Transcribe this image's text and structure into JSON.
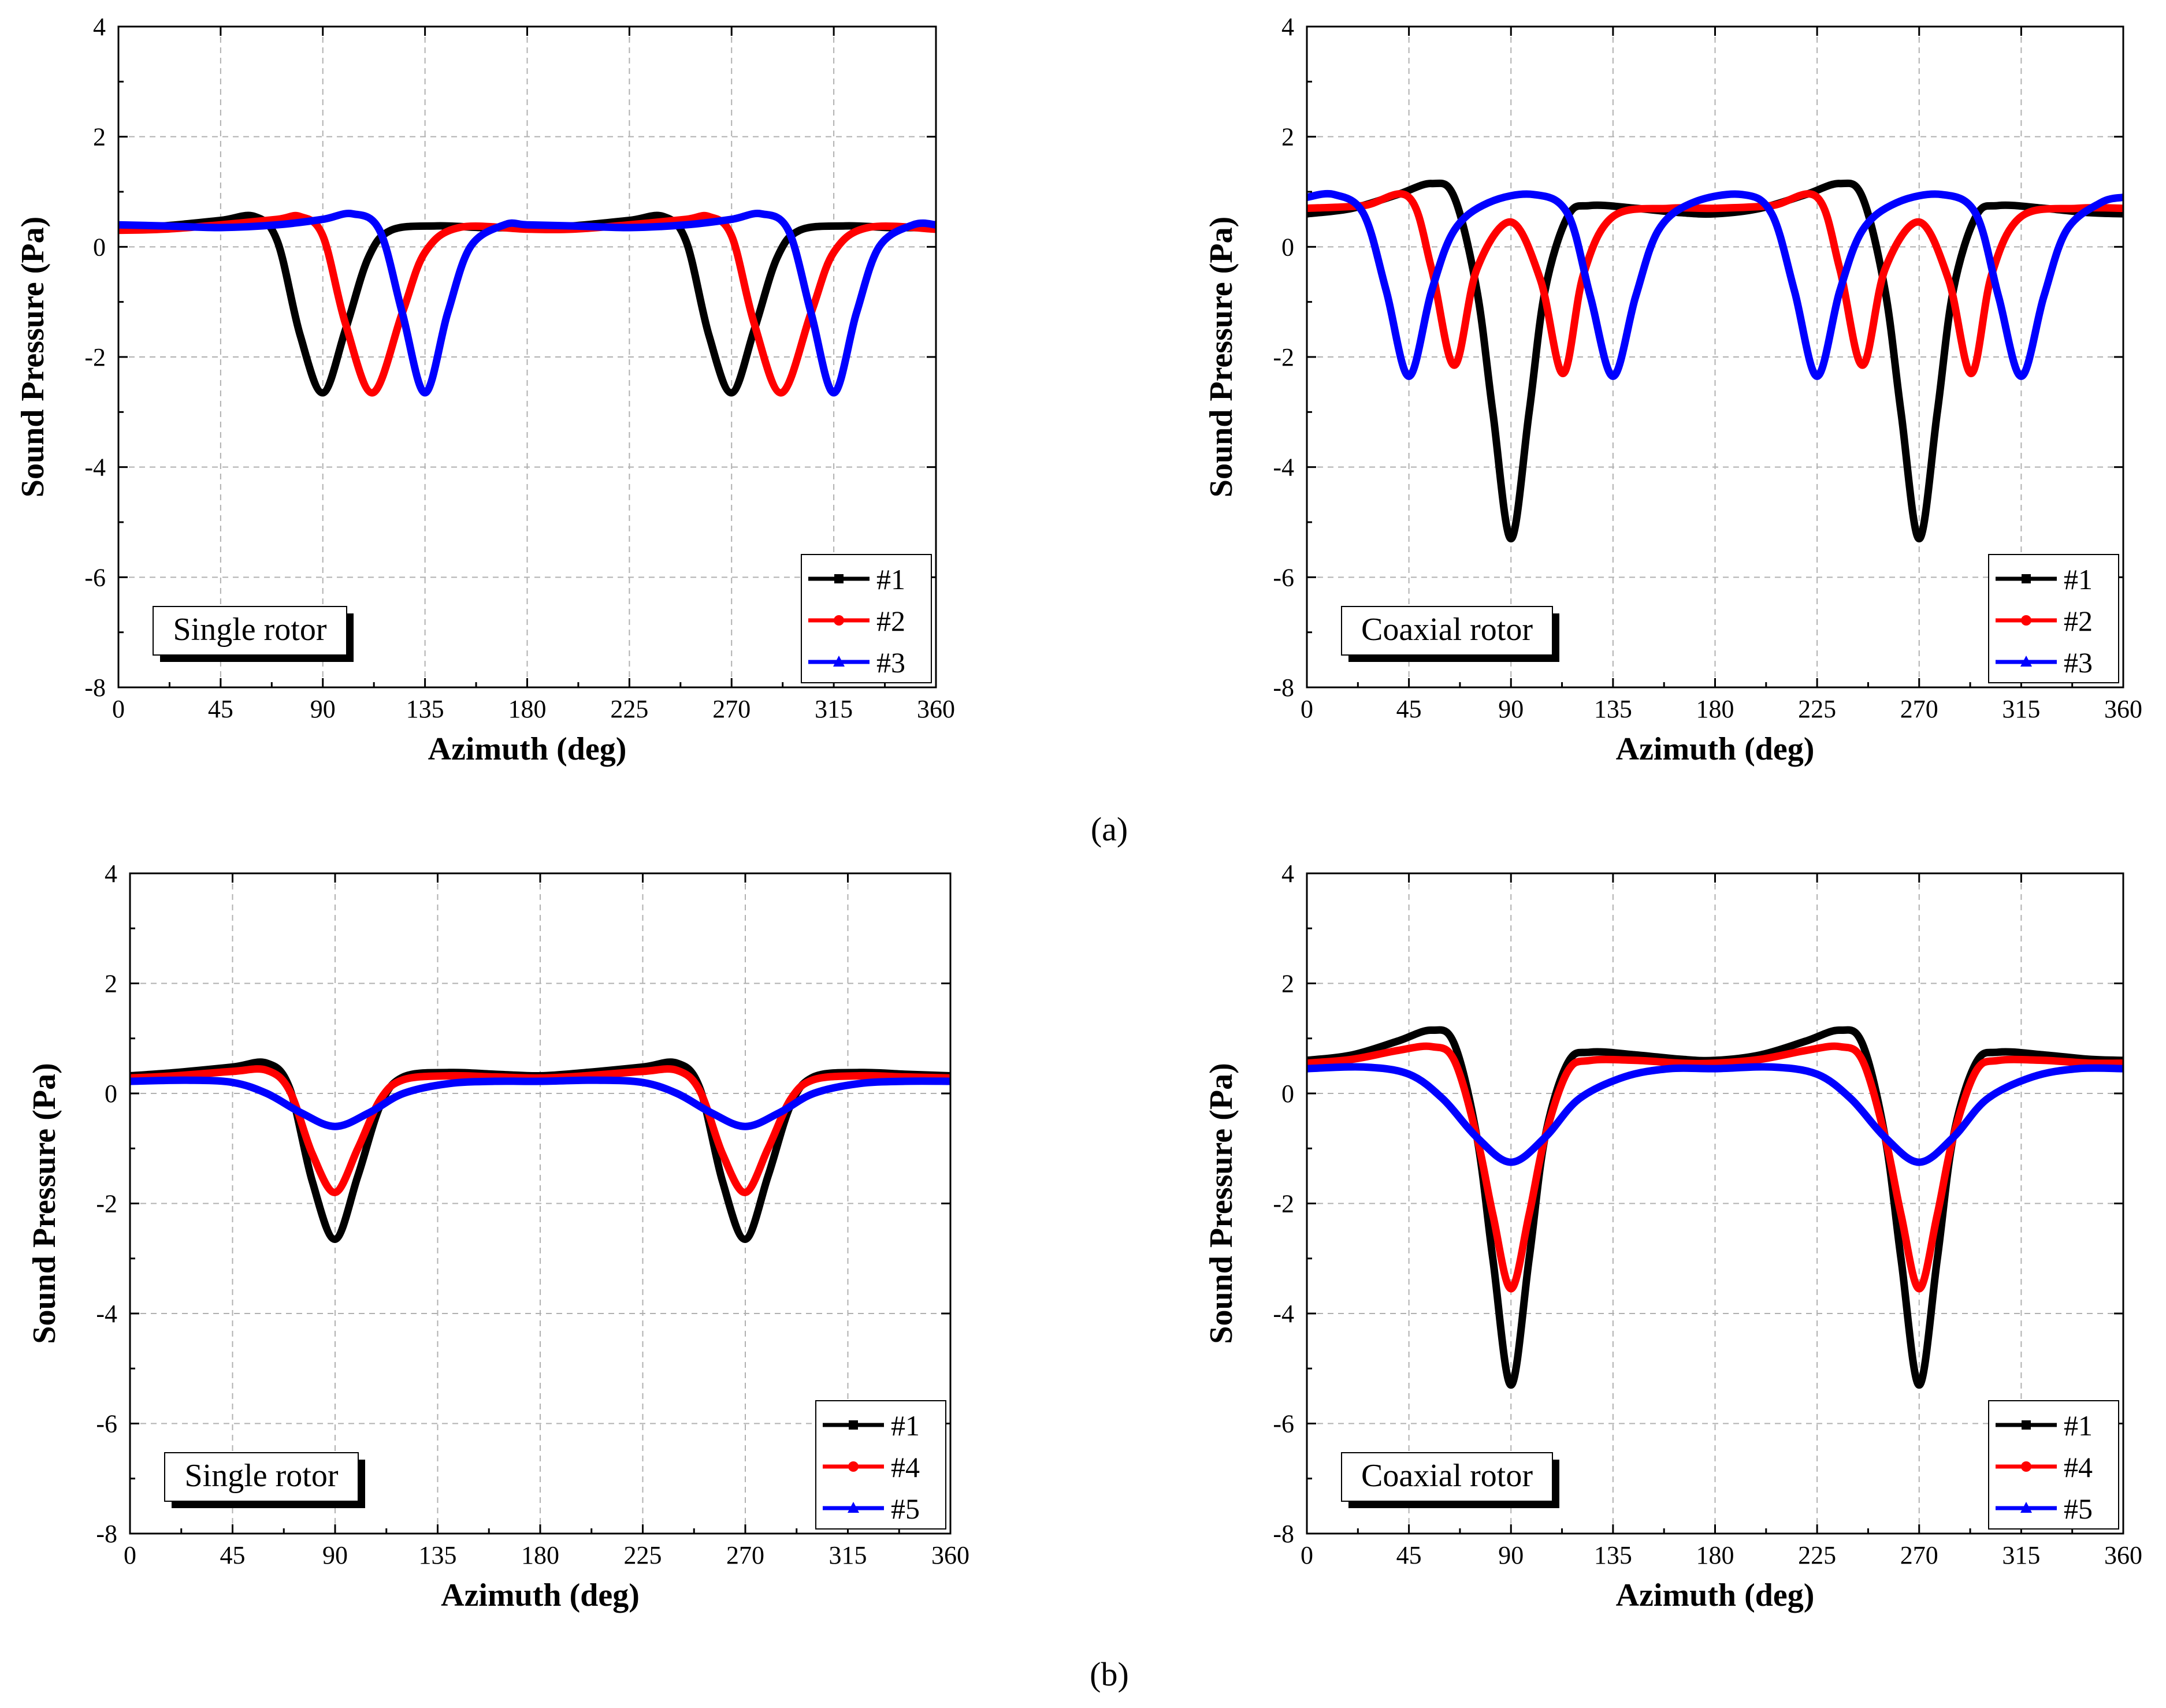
{
  "figure": {
    "panel_labels": [
      "(a)",
      "(b)"
    ],
    "series_colors": {
      "#1": "#000000",
      "#2": "#ff0000",
      "#3": "#0000ff",
      "#4": "#ff0000",
      "#5": "#0000ff"
    }
  },
  "chart_data": [
    {
      "id": "a-single",
      "type": "line",
      "rotor_label": "Single rotor",
      "xlabel": "Azimuth (deg)",
      "ylabel": "Sound Pressure (Pa)",
      "xlim": [
        0,
        360
      ],
      "ylim": [
        -8,
        4
      ],
      "xticks": [
        "0",
        "45",
        "90",
        "135",
        "180",
        "225",
        "270",
        "315",
        "360"
      ],
      "yticks": [
        "-8",
        "-6",
        "-4",
        "-2",
        "0",
        "2",
        "4"
      ],
      "grid": true,
      "legend": "bottom-right",
      "series": [
        {
          "name": "#1",
          "color": "#000000",
          "marker": "square",
          "x": [
            0,
            20,
            45,
            60,
            70,
            80,
            90,
            100,
            110,
            120,
            140,
            160,
            180,
            200,
            225,
            240,
            250,
            260,
            270,
            280,
            290,
            300,
            320,
            340,
            360
          ],
          "y": [
            0.35,
            0.38,
            0.48,
            0.55,
            0.1,
            -1.6,
            -2.65,
            -1.5,
            -0.2,
            0.3,
            0.38,
            0.35,
            0.35,
            0.38,
            0.48,
            0.55,
            0.1,
            -1.6,
            -2.65,
            -1.5,
            -0.2,
            0.3,
            0.38,
            0.35,
            0.35
          ]
        },
        {
          "name": "#2",
          "color": "#ff0000",
          "marker": "circle",
          "x": [
            0,
            20,
            45,
            70,
            80,
            90,
            100,
            112,
            125,
            135,
            150,
            180,
            200,
            225,
            250,
            260,
            270,
            280,
            292,
            305,
            315,
            330,
            360
          ],
          "y": [
            0.3,
            0.32,
            0.4,
            0.5,
            0.55,
            0.2,
            -1.4,
            -2.65,
            -1.2,
            -0.1,
            0.35,
            0.32,
            0.32,
            0.4,
            0.5,
            0.55,
            0.2,
            -1.4,
            -2.65,
            -1.2,
            -0.1,
            0.35,
            0.32
          ]
        },
        {
          "name": "#3",
          "color": "#0000ff",
          "marker": "triangle",
          "x": [
            0,
            20,
            45,
            70,
            90,
            103,
            115,
            125,
            135,
            145,
            155,
            170,
            180,
            200,
            225,
            250,
            270,
            283,
            295,
            305,
            315,
            325,
            335,
            350,
            360
          ],
          "y": [
            0.4,
            0.38,
            0.35,
            0.4,
            0.5,
            0.6,
            0.3,
            -1.2,
            -2.65,
            -1.2,
            0.0,
            0.4,
            0.4,
            0.38,
            0.35,
            0.4,
            0.5,
            0.6,
            0.3,
            -1.2,
            -2.65,
            -1.2,
            0.0,
            0.4,
            0.4
          ]
        }
      ]
    },
    {
      "id": "a-coaxial",
      "type": "line",
      "rotor_label": "Coaxial rotor",
      "xlabel": "Azimuth (deg)",
      "ylabel": "Sound Pressure (Pa)",
      "xlim": [
        0,
        360
      ],
      "ylim": [
        -8,
        4
      ],
      "xticks": [
        "0",
        "45",
        "90",
        "135",
        "180",
        "225",
        "270",
        "315",
        "360"
      ],
      "yticks": [
        "-8",
        "-6",
        "-4",
        "-2",
        "0",
        "2",
        "4"
      ],
      "grid": true,
      "legend": "bottom-right",
      "series": [
        {
          "name": "#1",
          "color": "#000000",
          "marker": "square",
          "x": [
            0,
            20,
            40,
            55,
            65,
            75,
            82,
            90,
            98,
            105,
            115,
            125,
            145,
            165,
            180,
            200,
            220,
            235,
            245,
            255,
            262,
            270,
            278,
            285,
            295,
            305,
            325,
            345,
            360
          ],
          "y": [
            0.6,
            0.7,
            0.95,
            1.15,
            0.9,
            -0.8,
            -3.0,
            -5.3,
            -3.0,
            -0.8,
            0.55,
            0.75,
            0.7,
            0.62,
            0.6,
            0.7,
            0.95,
            1.15,
            0.9,
            -0.8,
            -3.0,
            -5.3,
            -3.0,
            -0.8,
            0.55,
            0.75,
            0.7,
            0.62,
            0.6
          ]
        },
        {
          "name": "#2",
          "color": "#ff0000",
          "marker": "circle",
          "x": [
            0,
            25,
            45,
            55,
            65,
            75,
            90,
            103,
            113,
            122,
            135,
            160,
            180,
            205,
            225,
            235,
            245,
            255,
            270,
            283,
            293,
            302,
            315,
            340,
            360
          ],
          "y": [
            0.7,
            0.75,
            0.9,
            -0.4,
            -2.15,
            -0.4,
            0.45,
            -0.6,
            -2.3,
            -0.5,
            0.55,
            0.7,
            0.7,
            0.75,
            0.9,
            -0.4,
            -2.15,
            -0.4,
            0.45,
            -0.6,
            -2.3,
            -0.5,
            0.55,
            0.7,
            0.7
          ]
        },
        {
          "name": "#3",
          "color": "#0000ff",
          "marker": "triangle",
          "x": [
            0,
            12,
            25,
            35,
            45,
            55,
            65,
            80,
            100,
            115,
            125,
            135,
            145,
            155,
            170,
            192,
            205,
            215,
            225,
            235,
            245,
            260,
            280,
            295,
            305,
            315,
            325,
            335,
            350,
            360
          ],
          "y": [
            0.9,
            0.95,
            0.6,
            -0.8,
            -2.35,
            -0.8,
            0.3,
            0.8,
            0.95,
            0.6,
            -0.9,
            -2.35,
            -0.9,
            0.3,
            0.8,
            0.95,
            0.6,
            -0.8,
            -2.35,
            -0.8,
            0.3,
            0.8,
            0.95,
            0.6,
            -0.9,
            -2.35,
            -0.9,
            0.3,
            0.8,
            0.9
          ]
        }
      ]
    },
    {
      "id": "b-single",
      "type": "line",
      "rotor_label": "Single rotor",
      "xlabel": "Azimuth (deg)",
      "ylabel": "Sound Pressure (Pa)",
      "xlim": [
        0,
        360
      ],
      "ylim": [
        -8,
        4
      ],
      "xticks": [
        "0",
        "45",
        "90",
        "135",
        "180",
        "225",
        "270",
        "315",
        "360"
      ],
      "yticks": [
        "-8",
        "-6",
        "-4",
        "-2",
        "0",
        "2",
        "4"
      ],
      "grid": true,
      "legend": "bottom-right",
      "series": [
        {
          "name": "#1",
          "color": "#000000",
          "marker": "square",
          "x": [
            0,
            20,
            45,
            60,
            70,
            80,
            90,
            100,
            110,
            120,
            140,
            160,
            180,
            200,
            225,
            240,
            250,
            260,
            270,
            280,
            290,
            300,
            320,
            340,
            360
          ],
          "y": [
            0.32,
            0.38,
            0.48,
            0.55,
            0.1,
            -1.6,
            -2.65,
            -1.5,
            -0.2,
            0.3,
            0.38,
            0.35,
            0.32,
            0.38,
            0.48,
            0.55,
            0.1,
            -1.6,
            -2.65,
            -1.5,
            -0.2,
            0.3,
            0.38,
            0.35,
            0.32
          ]
        },
        {
          "name": "#4",
          "color": "#ff0000",
          "marker": "circle",
          "x": [
            0,
            20,
            45,
            60,
            70,
            80,
            90,
            100,
            110,
            120,
            140,
            160,
            180,
            200,
            225,
            240,
            250,
            260,
            270,
            280,
            290,
            300,
            320,
            340,
            360
          ],
          "y": [
            0.28,
            0.32,
            0.4,
            0.42,
            0.05,
            -1.1,
            -1.8,
            -1.0,
            -0.1,
            0.25,
            0.32,
            0.3,
            0.28,
            0.32,
            0.4,
            0.42,
            0.05,
            -1.1,
            -1.8,
            -1.0,
            -0.1,
            0.25,
            0.32,
            0.3,
            0.28
          ]
        },
        {
          "name": "#5",
          "color": "#0000ff",
          "marker": "triangle",
          "x": [
            0,
            25,
            45,
            60,
            75,
            90,
            105,
            120,
            140,
            160,
            180,
            205,
            225,
            240,
            255,
            270,
            285,
            300,
            320,
            340,
            360
          ],
          "y": [
            0.22,
            0.24,
            0.2,
            0.0,
            -0.35,
            -0.6,
            -0.35,
            0.0,
            0.18,
            0.22,
            0.22,
            0.24,
            0.2,
            0.0,
            -0.35,
            -0.6,
            -0.35,
            0.0,
            0.18,
            0.22,
            0.22
          ]
        }
      ]
    },
    {
      "id": "b-coaxial",
      "type": "line",
      "rotor_label": "Coaxial rotor",
      "xlabel": "Azimuth (deg)",
      "ylabel": "Sound Pressure (Pa)",
      "xlim": [
        0,
        360
      ],
      "ylim": [
        -8,
        4
      ],
      "xticks": [
        "0",
        "45",
        "90",
        "135",
        "180",
        "225",
        "270",
        "315",
        "360"
      ],
      "yticks": [
        "-8",
        "-6",
        "-4",
        "-2",
        "0",
        "2",
        "4"
      ],
      "grid": true,
      "legend": "bottom-right",
      "series": [
        {
          "name": "#1",
          "color": "#000000",
          "marker": "square",
          "x": [
            0,
            20,
            40,
            55,
            65,
            75,
            82,
            90,
            98,
            105,
            115,
            125,
            145,
            165,
            180,
            200,
            220,
            235,
            245,
            255,
            262,
            270,
            278,
            285,
            295,
            305,
            325,
            345,
            360
          ],
          "y": [
            0.6,
            0.7,
            0.95,
            1.15,
            0.9,
            -0.8,
            -3.0,
            -5.3,
            -3.0,
            -0.8,
            0.55,
            0.75,
            0.7,
            0.62,
            0.6,
            0.7,
            0.95,
            1.15,
            0.9,
            -0.8,
            -3.0,
            -5.3,
            -3.0,
            -0.8,
            0.55,
            0.75,
            0.7,
            0.62,
            0.6
          ]
        },
        {
          "name": "#4",
          "color": "#ff0000",
          "marker": "circle",
          "x": [
            0,
            20,
            40,
            55,
            65,
            75,
            82,
            90,
            98,
            105,
            115,
            125,
            145,
            165,
            180,
            200,
            220,
            235,
            245,
            255,
            262,
            270,
            278,
            285,
            295,
            305,
            325,
            345,
            360
          ],
          "y": [
            0.55,
            0.62,
            0.78,
            0.85,
            0.6,
            -0.8,
            -2.2,
            -3.55,
            -2.2,
            -0.8,
            0.4,
            0.6,
            0.6,
            0.55,
            0.55,
            0.62,
            0.78,
            0.85,
            0.6,
            -0.8,
            -2.2,
            -3.55,
            -2.2,
            -0.8,
            0.4,
            0.6,
            0.6,
            0.55,
            0.55
          ]
        },
        {
          "name": "#5",
          "color": "#0000ff",
          "marker": "triangle",
          "x": [
            0,
            25,
            45,
            60,
            75,
            90,
            105,
            120,
            140,
            160,
            180,
            205,
            225,
            240,
            255,
            270,
            285,
            300,
            320,
            340,
            360
          ],
          "y": [
            0.45,
            0.48,
            0.35,
            -0.1,
            -0.8,
            -1.25,
            -0.8,
            -0.1,
            0.3,
            0.45,
            0.45,
            0.48,
            0.35,
            -0.1,
            -0.8,
            -1.25,
            -0.8,
            -0.1,
            0.3,
            0.45,
            0.45
          ]
        }
      ]
    }
  ]
}
